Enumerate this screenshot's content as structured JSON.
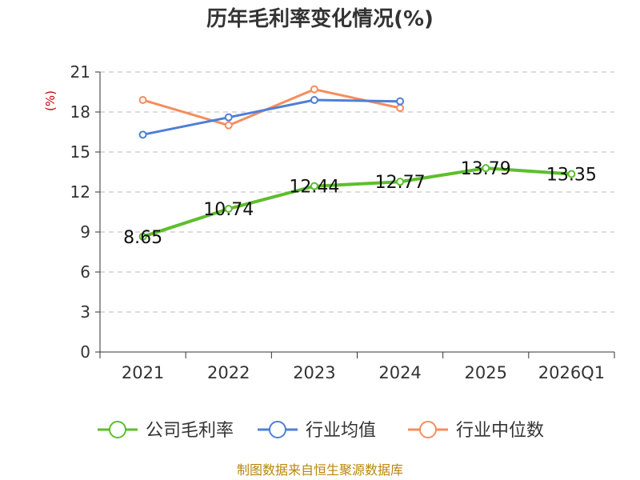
{
  "chart_data": {
    "type": "line",
    "title": "历年毛利率变化情况(%)",
    "ylabel": "(%)",
    "xlabel": "",
    "categories": [
      "2021",
      "2022",
      "2023",
      "2024",
      "2025",
      "2026Q1"
    ],
    "ylim": [
      0,
      21
    ],
    "yticks": [
      0,
      3,
      6,
      9,
      12,
      15,
      18,
      21
    ],
    "grid": true,
    "legend_position": "bottom",
    "series": [
      {
        "name": "公司毛利率",
        "color": "#5dbe2d",
        "values": [
          8.65,
          10.74,
          12.44,
          12.77,
          13.79,
          13.35
        ],
        "labels": [
          "8.65",
          "10.74",
          "12.44",
          "12.77",
          "13.79",
          "13.35"
        ]
      },
      {
        "name": "行业均值",
        "color": "#4e7fd6",
        "values": [
          16.3,
          17.6,
          18.9,
          18.8,
          null,
          null
        ]
      },
      {
        "name": "行业中位数",
        "color": "#f58d5d",
        "values": [
          18.9,
          17.0,
          19.7,
          18.3,
          null,
          null
        ]
      }
    ]
  },
  "footer": {
    "source": "制图数据来自恒生聚源数据库"
  }
}
